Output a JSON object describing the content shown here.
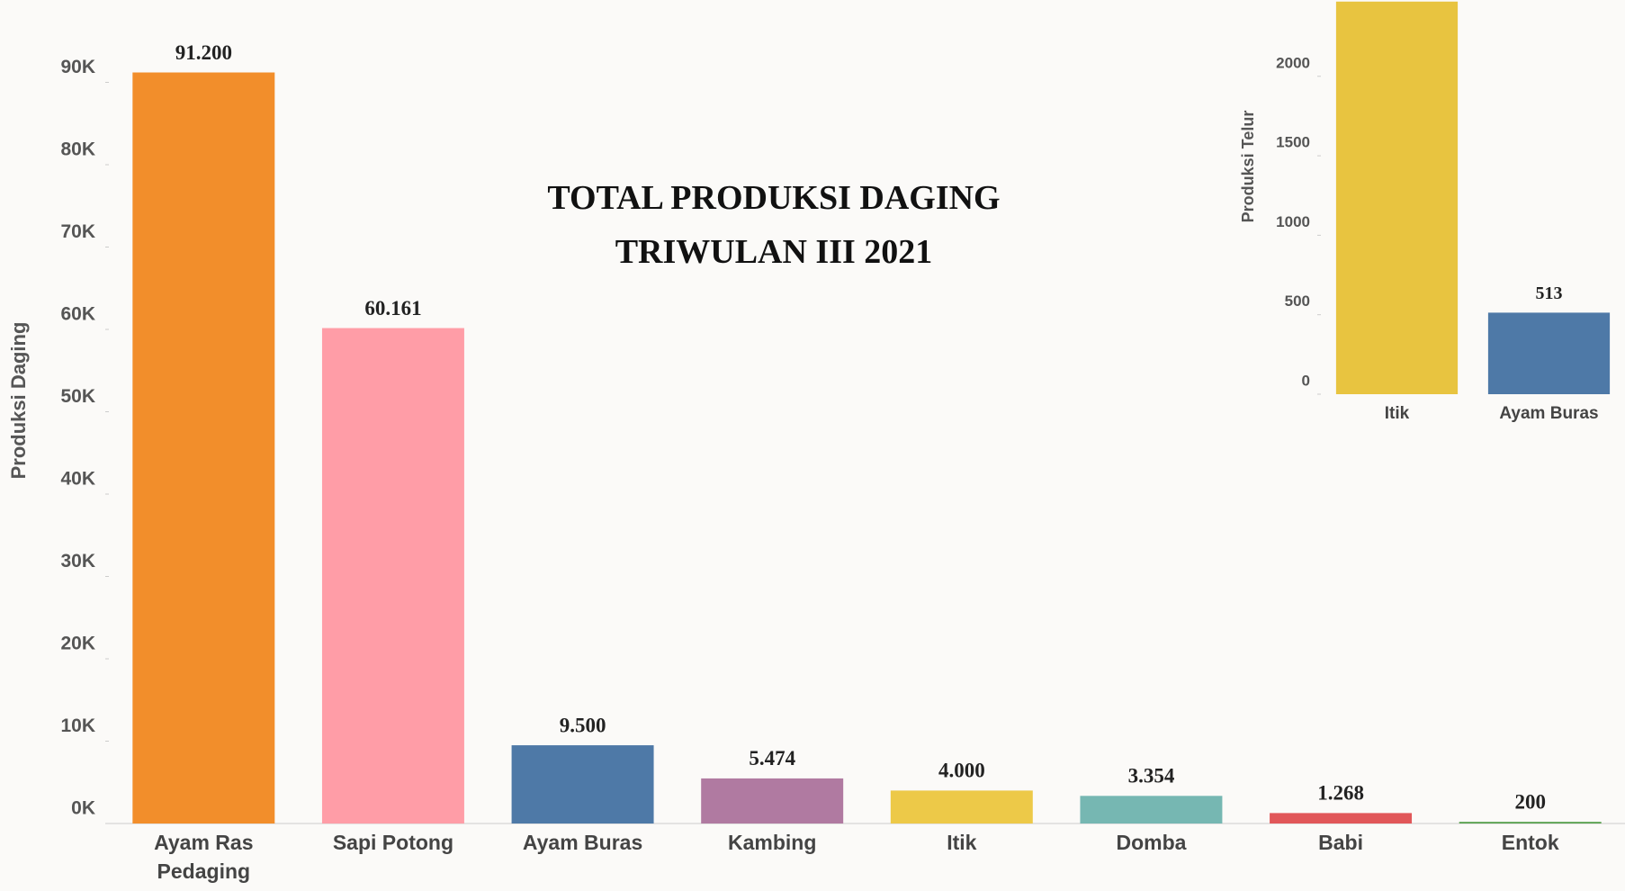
{
  "chart_data": [
    {
      "type": "bar",
      "title": "TOTAL PRODUKSI DAGING TRIWULAN III 2021",
      "y_label": "Produksi Daging",
      "categories": [
        "Ayam Ras Pedaging",
        "Sapi Potong",
        "Ayam Buras",
        "Kambing",
        "Itik",
        "Domba",
        "Babi",
        "Entok"
      ],
      "values": [
        91200,
        60161,
        9500,
        5474,
        4000,
        3354,
        1268,
        200
      ],
      "value_labels": [
        "91.200",
        "60.161",
        "9.500",
        "5.474",
        "4.000",
        "3.354",
        "1.268",
        "200"
      ],
      "colors": [
        "#f28e2b",
        "#ff9da7",
        "#4e79a7",
        "#b07aa1",
        "#edc948",
        "#76b7b2",
        "#e15759",
        "#59a14f"
      ],
      "ylim": [
        0,
        100000
      ],
      "yticks": [
        {
          "value": 0,
          "label": "0K"
        },
        {
          "value": 10000,
          "label": "10K"
        },
        {
          "value": 20000,
          "label": "20K"
        },
        {
          "value": 30000,
          "label": "30K"
        },
        {
          "value": 40000,
          "label": "40K"
        },
        {
          "value": 50000,
          "label": "50K"
        },
        {
          "value": 60000,
          "label": "60K"
        },
        {
          "value": 70000,
          "label": "70K"
        },
        {
          "value": 80000,
          "label": "80K"
        },
        {
          "value": 90000,
          "label": "90K"
        }
      ]
    },
    {
      "type": "bar",
      "y_label": "Produksi Telur",
      "categories": [
        "Itik",
        "Ayam Buras"
      ],
      "values": [
        2470,
        513
      ],
      "value_labels": [
        null,
        "513"
      ],
      "colors": [
        "#e8c440",
        "#4e79a7"
      ],
      "ylim": [
        0,
        2480
      ],
      "yticks": [
        0,
        500,
        1000,
        1500,
        2000
      ]
    }
  ]
}
